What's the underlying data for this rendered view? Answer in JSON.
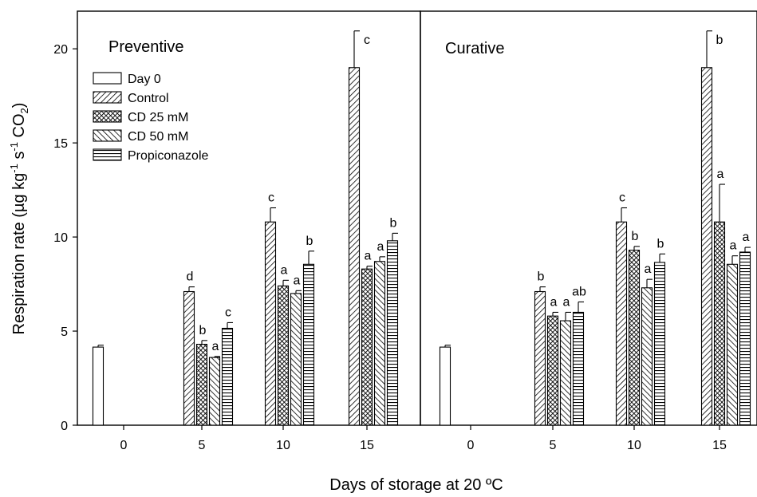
{
  "chart_data": [
    {
      "type": "bar",
      "title": "Preventive",
      "xlabel": "Days of storage at 20 ºC",
      "ylabel": "Respiration rate (µg kg-1 s-1 CO2)",
      "ylim": [
        0,
        22
      ],
      "yticks": [
        0,
        5,
        10,
        15,
        20
      ],
      "x_ticks": [
        "0",
        "5",
        "10",
        "15"
      ],
      "legend": {
        "position": "top-left"
      },
      "series": [
        {
          "name": "Day 0",
          "pattern": "none",
          "values": [
            4.15,
            null,
            null,
            null
          ],
          "errors": [
            0.1,
            null,
            null,
            null
          ],
          "labels": [
            "",
            "",
            "",
            ""
          ]
        },
        {
          "name": "Control",
          "pattern": "hatch-forward",
          "values": [
            null,
            7.1,
            10.8,
            19.0
          ],
          "errors": [
            null,
            0.25,
            0.75,
            1.95
          ],
          "labels": [
            "",
            "d",
            "c",
            "c"
          ]
        },
        {
          "name": "CD 25 mM",
          "pattern": "crosshatch",
          "values": [
            null,
            4.3,
            7.4,
            8.3
          ],
          "errors": [
            null,
            0.2,
            0.3,
            0.15
          ],
          "labels": [
            "",
            "b",
            "a",
            "a"
          ]
        },
        {
          "name": "CD 50 mM",
          "pattern": "hatch-back",
          "values": [
            null,
            3.6,
            7.0,
            8.7
          ],
          "errors": [
            null,
            0.05,
            0.15,
            0.25
          ],
          "labels": [
            "",
            "a",
            "a",
            "a"
          ]
        },
        {
          "name": "Propiconazole",
          "pattern": "horizontal",
          "values": [
            null,
            5.15,
            8.55,
            9.8
          ],
          "errors": [
            null,
            0.3,
            0.7,
            0.4
          ],
          "labels": [
            "",
            "c",
            "b",
            "b"
          ]
        }
      ]
    },
    {
      "type": "bar",
      "title": "Curative",
      "ylim": [
        0,
        22
      ],
      "x_ticks": [
        "0",
        "5",
        "10",
        "15"
      ],
      "series": [
        {
          "name": "Day 0",
          "values": [
            4.15,
            null,
            null,
            null
          ],
          "errors": [
            0.1,
            null,
            null,
            null
          ],
          "labels": [
            "",
            "",
            "",
            ""
          ]
        },
        {
          "name": "Control",
          "values": [
            null,
            7.1,
            10.8,
            19.0
          ],
          "errors": [
            null,
            0.25,
            0.75,
            1.95
          ],
          "labels": [
            "",
            "b",
            "c",
            "b"
          ]
        },
        {
          "name": "CD 25 mM",
          "values": [
            null,
            5.8,
            9.3,
            10.8
          ],
          "errors": [
            null,
            0.2,
            0.2,
            2.0
          ],
          "labels": [
            "",
            "a",
            "b",
            "a"
          ]
        },
        {
          "name": "CD 50 mM",
          "values": [
            null,
            5.55,
            7.3,
            8.55
          ],
          "errors": [
            null,
            0.45,
            0.45,
            0.45
          ],
          "labels": [
            "",
            "a",
            "a",
            "a"
          ]
        },
        {
          "name": "Propiconazole",
          "values": [
            null,
            6.0,
            8.65,
            9.2
          ],
          "errors": [
            null,
            0.55,
            0.45,
            0.25
          ],
          "labels": [
            "",
            "ab",
            "b",
            "a"
          ]
        }
      ]
    }
  ]
}
